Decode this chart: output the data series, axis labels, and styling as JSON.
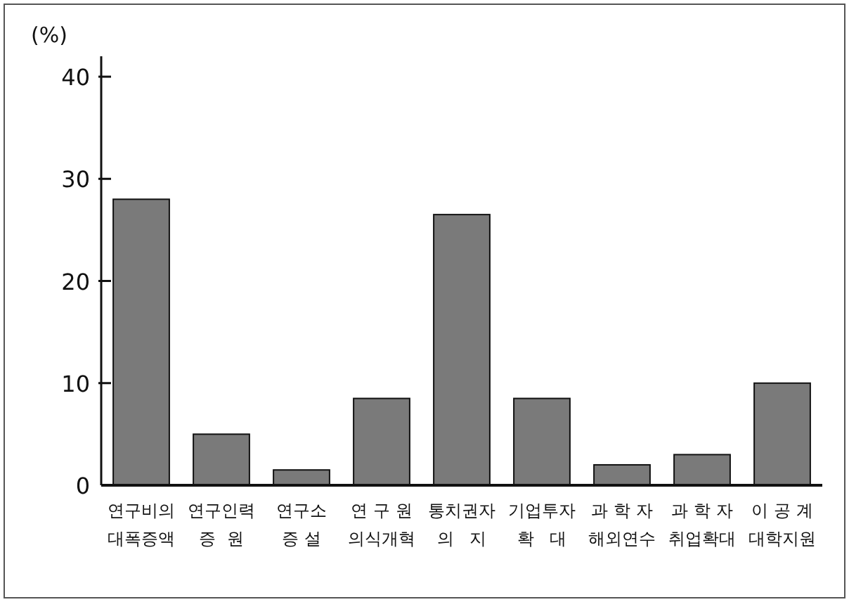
{
  "chart_data": {
    "type": "bar",
    "ylabel": "(%)",
    "categories": [
      "연구비의\n대폭증액",
      "연구인력\n증  원",
      "연구소\n증 설",
      "연 구 원\n의식개혁",
      "통치권자\n의   지",
      "기업투자\n확   대",
      "과 학 자\n해외연수",
      "과 학 자\n취업확대",
      "이 공 계\n대학지원"
    ],
    "values": [
      28,
      5,
      1.5,
      8.5,
      26.5,
      8.5,
      2,
      3,
      10
    ],
    "color": "#7a7a7a",
    "ylim": [
      0,
      42
    ],
    "yticks": [
      0,
      10,
      20,
      30,
      40
    ],
    "grid": false
  }
}
